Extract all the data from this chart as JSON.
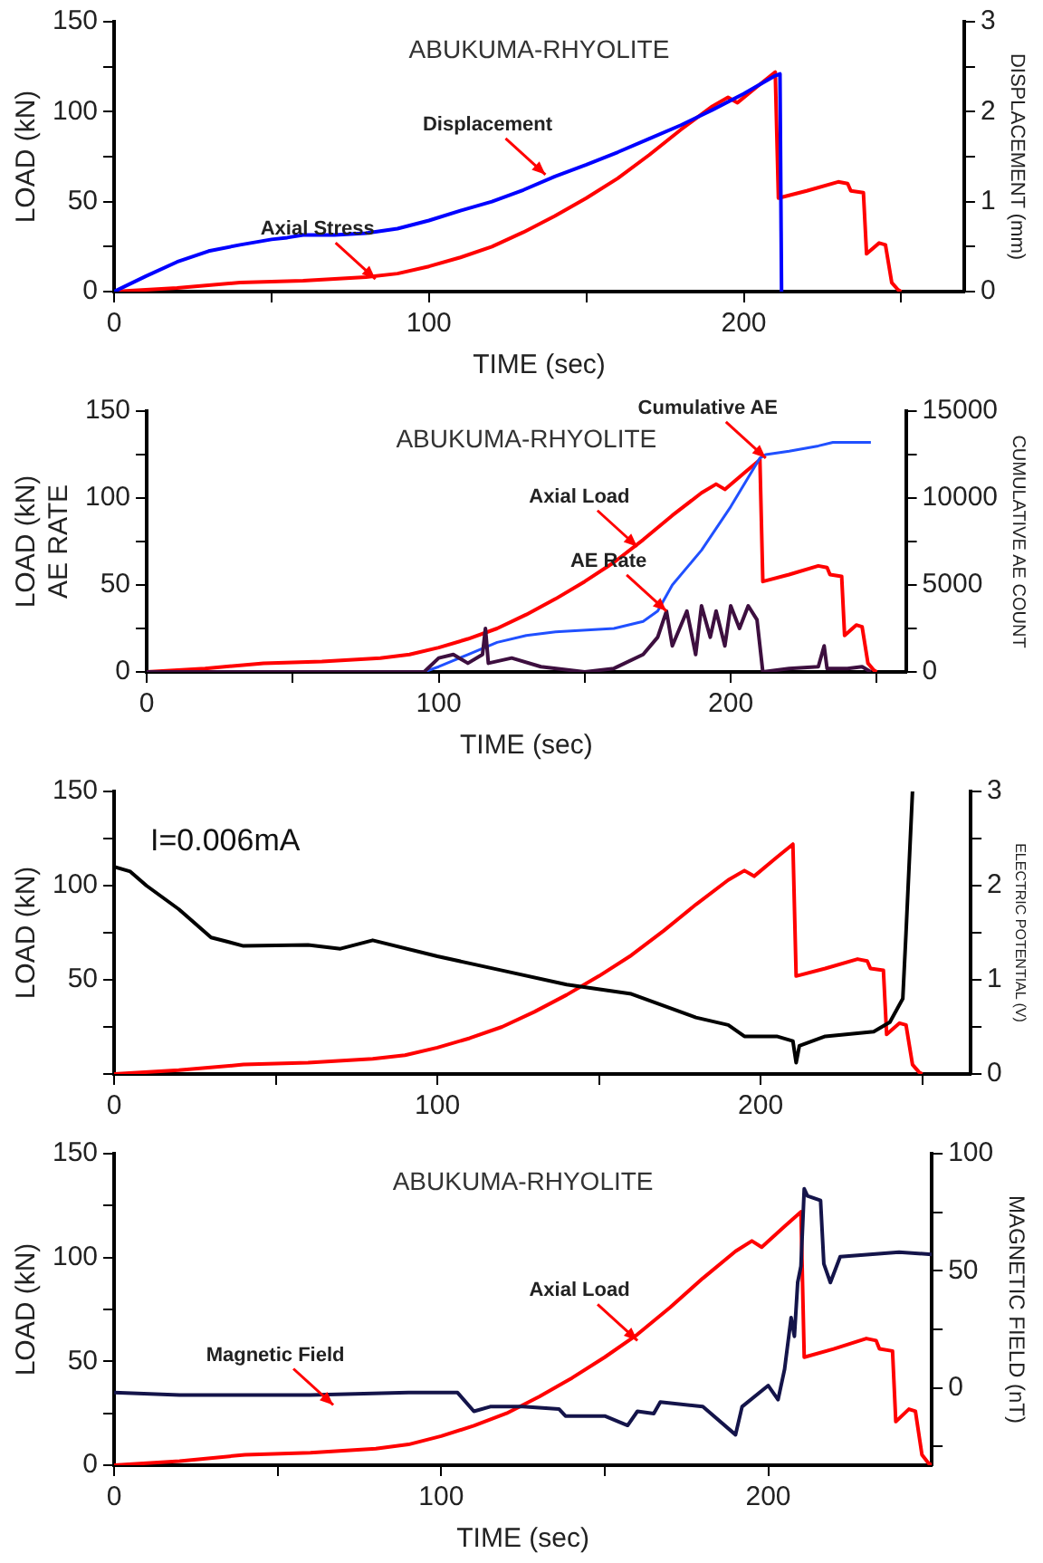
{
  "chart_data": [
    {
      "type": "line",
      "title": "ABUKUMA-RHYOLITE",
      "xlabel": "TIME (sec)",
      "ylabel": "LOAD (kN)",
      "y2label": "DISPLACEMENT (mm)",
      "xlim": [
        0,
        270
      ],
      "xticks": [
        0,
        {
          "value": 50,
          "label": null
        },
        100,
        {
          "value": 150,
          "label": null
        },
        200,
        {
          "value": 250,
          "label": null
        }
      ],
      "ylim": [
        0,
        150
      ],
      "yticks": [
        0,
        {
          "value": 25,
          "label": null
        },
        50,
        {
          "value": 75,
          "label": null
        },
        100,
        {
          "value": 125,
          "label": null
        },
        150
      ],
      "y2lim": [
        0,
        3
      ],
      "y2ticks": [
        0,
        {
          "value": 0.5,
          "label": null
        },
        1,
        {
          "value": 1.5,
          "label": null
        },
        2,
        {
          "value": 2.5,
          "label": null
        },
        3
      ],
      "grid": false,
      "legend": false,
      "series": [
        {
          "color": "#0000ff",
          "axis": "y2",
          "x": [
            0,
            10,
            20,
            30,
            40,
            50,
            55,
            60,
            70,
            80,
            90,
            100,
            110,
            120,
            130,
            140,
            150,
            160,
            170,
            180,
            190,
            200,
            205,
            210,
            211.5,
            212
          ],
          "values": [
            0,
            0.17,
            0.33,
            0.45,
            0.52,
            0.58,
            0.6,
            0.63,
            0.63,
            0.65,
            0.7,
            0.79,
            0.9,
            1.0,
            1.13,
            1.28,
            1.41,
            1.55,
            1.7,
            1.85,
            2.02,
            2.2,
            2.3,
            2.4,
            2.42,
            0
          ]
        },
        {
          "color": "#ff0000",
          "x": [
            0,
            20,
            40,
            60,
            80,
            90,
            100,
            110,
            120,
            130,
            140,
            150,
            160,
            170,
            180,
            190,
            195,
            198,
            205,
            210,
            211,
            220,
            230,
            233,
            234,
            238,
            239,
            243,
            245,
            247,
            249,
            250
          ],
          "values": [
            0,
            2,
            5,
            6,
            8,
            10,
            14,
            19,
            25,
            33,
            42,
            52,
            63,
            76,
            90,
            103,
            108,
            105,
            115,
            122,
            52,
            56,
            61,
            60,
            56,
            55,
            21,
            27,
            26,
            5,
            1,
            0
          ]
        }
      ],
      "annotations": [
        {
          "text": "Displacement",
          "x": 137,
          "y": 65
        },
        {
          "text": "Axial Stress",
          "x": 83,
          "y": 7
        }
      ]
    },
    {
      "type": "line",
      "title": "ABUKUMA-RHYOLITE",
      "xlabel": "TIME (sec)",
      "ylabel": "LOAD (kN)\nAE RATE",
      "y2label": "CUMULATIVE AE COUNT",
      "xlim": [
        0,
        260
      ],
      "xticks": [
        0,
        {
          "value": 50,
          "label": null
        },
        100,
        {
          "value": 150,
          "label": null
        },
        200,
        {
          "value": 250,
          "label": null
        }
      ],
      "ylim": [
        0,
        150
      ],
      "yticks": [
        0,
        {
          "value": 25,
          "label": null
        },
        50,
        {
          "value": 75,
          "label": null
        },
        100,
        {
          "value": 125,
          "label": null
        },
        150
      ],
      "y2lim": [
        0,
        15000
      ],
      "y2ticks": [
        0,
        {
          "value": 2500,
          "label": null
        },
        5000,
        {
          "value": 7500,
          "label": null
        },
        10000,
        {
          "value": 12500,
          "label": null
        },
        15000
      ],
      "grid": false,
      "legend": false,
      "series": [
        {
          "color": "#3d0f3f",
          "x": [
            0,
            95,
            100,
            105,
            110,
            115,
            116,
            117,
            125,
            135,
            150,
            160,
            170,
            175,
            178,
            180,
            185,
            188,
            190,
            193,
            195,
            198,
            200,
            203,
            206,
            209,
            211,
            220,
            230,
            232,
            233,
            240,
            245,
            248
          ],
          "values": [
            0,
            0,
            8,
            10,
            5,
            10,
            25,
            5,
            8,
            3,
            0,
            2,
            10,
            20,
            35,
            15,
            35,
            10,
            38,
            20,
            35,
            15,
            38,
            25,
            38,
            30,
            0,
            2,
            3,
            15,
            2,
            2,
            3,
            0
          ]
        },
        {
          "color": "#2050ff",
          "axis": "y2",
          "x": [
            0,
            95,
            100,
            110,
            120,
            130,
            140,
            160,
            170,
            175,
            180,
            190,
            200,
            210,
            212,
            220,
            230,
            235,
            248
          ],
          "values": [
            0,
            0,
            300,
            1000,
            1700,
            2100,
            2300,
            2500,
            2900,
            3500,
            5000,
            7000,
            9500,
            12300,
            12500,
            12700,
            13000,
            13200,
            13200
          ]
        },
        {
          "color": "#ff0000",
          "x": [
            0,
            20,
            40,
            60,
            80,
            90,
            100,
            110,
            120,
            130,
            140,
            150,
            160,
            170,
            180,
            190,
            195,
            198,
            205,
            210,
            211,
            220,
            230,
            233,
            234,
            238,
            239,
            243,
            245,
            247,
            249,
            250
          ],
          "values": [
            0,
            2,
            5,
            6,
            8,
            10,
            14,
            19,
            25,
            33,
            42,
            52,
            63,
            76,
            90,
            103,
            108,
            105,
            115,
            122,
            52,
            56,
            61,
            60,
            56,
            55,
            21,
            27,
            26,
            5,
            1,
            0
          ]
        }
      ],
      "annotations": [
        {
          "text": "Cumulative AE",
          "x": 212,
          "y": 123
        },
        {
          "text": "Axial Load",
          "x": 168,
          "y": 72
        },
        {
          "text": "AE Rate",
          "x": 178,
          "y": 35
        }
      ]
    },
    {
      "type": "line",
      "ylabel": "LOAD (kN)",
      "y2label": "ELECTRIC POTENTIAL (V)",
      "xlim": [
        0,
        265
      ],
      "xticks": [
        0,
        {
          "value": 50,
          "label": null
        },
        100,
        {
          "value": 150,
          "label": null
        },
        200,
        {
          "value": 250,
          "label": null
        }
      ],
      "ylim": [
        0,
        150
      ],
      "yticks": [
        {
          "value": 0,
          "label": null
        },
        {
          "value": 25,
          "label": null
        },
        50,
        {
          "value": 75,
          "label": null
        },
        100,
        {
          "value": 125,
          "label": null
        },
        150
      ],
      "y2lim": [
        0,
        3
      ],
      "y2ticks": [
        0,
        {
          "value": 0.5,
          "label": null
        },
        1,
        {
          "value": 1.5,
          "label": null
        },
        2,
        {
          "value": 2.5,
          "label": null
        },
        3
      ],
      "grid": false,
      "legend": false,
      "series": [
        {
          "color": "#000000",
          "axis": "y2",
          "x": [
            0,
            5,
            10,
            20,
            30,
            40,
            60,
            70,
            80,
            100,
            120,
            140,
            160,
            180,
            190,
            195,
            205,
            210,
            211,
            212,
            220,
            235,
            240,
            244,
            245,
            247
          ],
          "values": [
            2.2,
            2.15,
            2.0,
            1.75,
            1.45,
            1.36,
            1.37,
            1.33,
            1.42,
            1.25,
            1.1,
            0.95,
            0.85,
            0.6,
            0.52,
            0.4,
            0.4,
            0.35,
            0.12,
            0.3,
            0.4,
            0.45,
            0.55,
            0.8,
            1.5,
            3.0
          ]
        },
        {
          "color": "#ff0000",
          "x": [
            0,
            20,
            40,
            60,
            80,
            90,
            100,
            110,
            120,
            130,
            140,
            150,
            160,
            170,
            180,
            190,
            195,
            198,
            205,
            210,
            211,
            220,
            230,
            233,
            234,
            238,
            239,
            243,
            245,
            247,
            249,
            250
          ],
          "values": [
            0,
            2,
            5,
            6,
            8,
            10,
            14,
            19,
            25,
            33,
            42,
            52,
            63,
            76,
            90,
            103,
            108,
            105,
            115,
            122,
            52,
            56,
            61,
            60,
            56,
            55,
            21,
            27,
            26,
            5,
            1,
            0
          ]
        }
      ],
      "annotations": [
        "I=0.006mA"
      ]
    },
    {
      "type": "line",
      "title": "ABUKUMA-RHYOLITE",
      "xlabel": "TIME (sec)",
      "ylabel": "LOAD (kN)",
      "y2label": "MAGNETIC FIELD (nT)",
      "xlim": [
        0,
        250
      ],
      "xticks": [
        0,
        {
          "value": 50,
          "label": null
        },
        100,
        {
          "value": 150,
          "label": null
        },
        200
      ],
      "ylim": [
        0,
        150
      ],
      "yticks": [
        0,
        {
          "value": 25,
          "label": null
        },
        50,
        {
          "value": 75,
          "label": null
        },
        100,
        {
          "value": 125,
          "label": null
        },
        150
      ],
      "y2lim": [
        -33,
        100
      ],
      "y2ticks": [
        {
          "value": -25,
          "label": null
        },
        0,
        {
          "value": 25,
          "label": null
        },
        50,
        {
          "value": 75,
          "label": null
        },
        100
      ],
      "grid": false,
      "legend": false,
      "series": [
        {
          "color": "#14144a",
          "axis": "y2",
          "x": [
            0,
            20,
            40,
            60,
            90,
            92,
            105,
            110,
            115,
            125,
            136,
            138,
            150,
            157,
            160,
            165,
            167,
            180,
            190,
            192,
            200,
            203,
            205,
            207,
            208,
            209,
            210,
            211,
            212,
            216,
            217,
            219,
            222,
            240,
            250
          ],
          "values": [
            -2,
            -3,
            -3,
            -3,
            -2,
            -2,
            -2,
            -10,
            -8,
            -8,
            -9,
            -12,
            -12,
            -16,
            -10,
            -11,
            -6,
            -8,
            -20,
            -8,
            1,
            -5,
            8,
            30,
            22,
            45,
            52,
            85,
            82,
            80,
            53,
            45,
            56,
            58,
            57
          ]
        },
        {
          "color": "#ff0000",
          "x": [
            0,
            20,
            40,
            60,
            80,
            90,
            100,
            110,
            120,
            130,
            140,
            150,
            160,
            170,
            180,
            190,
            195,
            198,
            205,
            210,
            211,
            220,
            230,
            233,
            234,
            238,
            239,
            243,
            245,
            247,
            249,
            250
          ],
          "values": [
            0,
            2,
            5,
            6,
            8,
            10,
            14,
            19,
            25,
            33,
            42,
            52,
            63,
            76,
            90,
            103,
            108,
            105,
            115,
            122,
            52,
            56,
            61,
            60,
            56,
            55,
            21,
            27,
            26,
            5,
            1,
            0
          ]
        }
      ],
      "annotations": [
        {
          "text": "Axial Load",
          "x": 160,
          "y": 60
        },
        {
          "text": "Magnetic Field",
          "x": 67,
          "y": 29
        }
      ]
    }
  ]
}
